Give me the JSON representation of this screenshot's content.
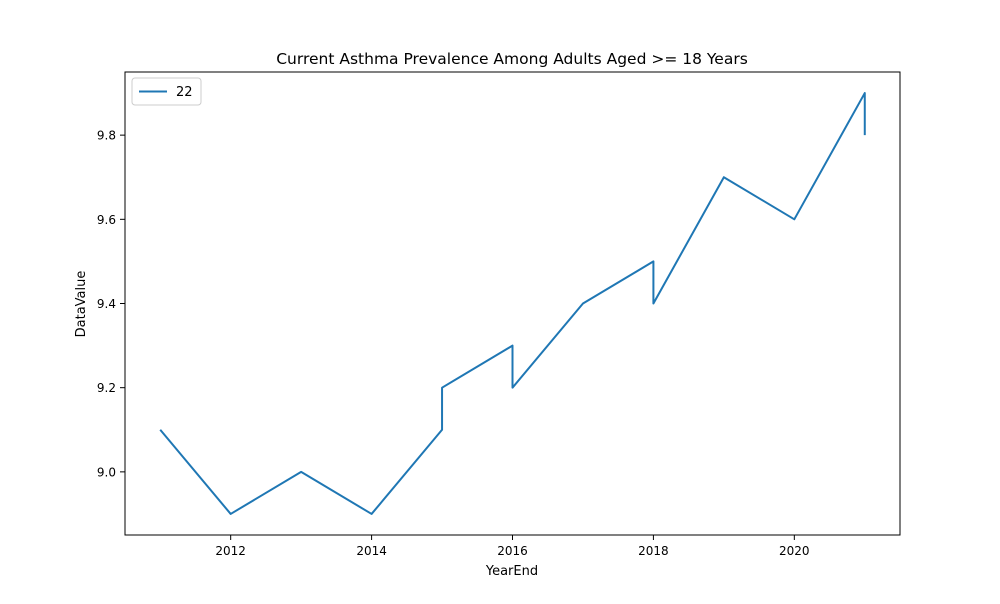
{
  "chart_data": {
    "type": "line",
    "title": "Current Asthma Prevalence Among Adults Aged >= 18 Years",
    "xlabel": "YearEnd",
    "ylabel": "DataValue",
    "xlim": [
      2010.5,
      2021.5
    ],
    "ylim": [
      8.85,
      9.95
    ],
    "x_ticks": [
      2012,
      2014,
      2016,
      2018,
      2020
    ],
    "y_ticks": [
      9.0,
      9.2,
      9.4,
      9.6,
      9.8
    ],
    "y_tick_labels": [
      "9.0",
      "9.2",
      "9.4",
      "9.6",
      "9.8"
    ],
    "grid": false,
    "legend": {
      "position": "top-left"
    },
    "series": [
      {
        "name": "22",
        "color": "#1f77b4",
        "x": [
          2011,
          2012,
          2013,
          2014,
          2015,
          2015,
          2016,
          2016,
          2017,
          2018,
          2018,
          2019,
          2020,
          2021,
          2021
        ],
        "y": [
          9.1,
          8.9,
          9.0,
          8.9,
          9.1,
          9.2,
          9.3,
          9.2,
          9.4,
          9.5,
          9.4,
          9.7,
          9.6,
          9.9,
          9.8
        ]
      }
    ]
  }
}
